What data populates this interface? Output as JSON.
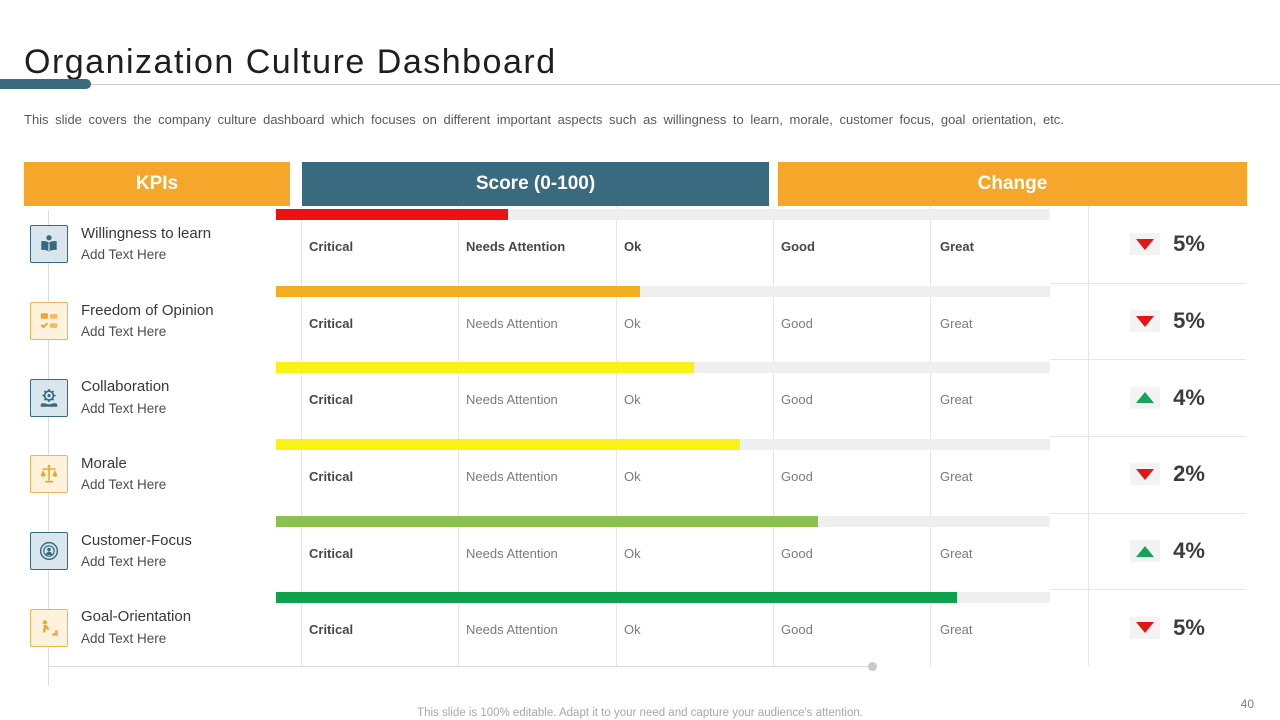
{
  "slide": {
    "title": "Organization Culture Dashboard",
    "subtitle": "This slide covers the company culture dashboard which focuses on different important aspects such as willingness to learn, morale, customer focus, goal orientation, etc.",
    "footer": "This slide is 100% editable. Adapt it to your need and capture your audience's attention.",
    "page_number": "40",
    "accent_color": "#3A6A80"
  },
  "table": {
    "headers": [
      {
        "label": "KPIs",
        "color": "#F6A72B"
      },
      {
        "label": "Score (0-100)",
        "color": "#3A6A80"
      },
      {
        "label": "Change",
        "color": "#F6A72B"
      }
    ],
    "scale_labels": [
      "Critical",
      "Needs Attention",
      "Ok",
      "Good",
      "Great"
    ],
    "change_colors": {
      "up": "#16A45A",
      "down": "#E11717"
    },
    "rows": [
      {
        "name": "Willingness to learn",
        "subtext": "Add Text Here",
        "icon": "reading-person-icon",
        "theme": "teal",
        "score": 30,
        "bar_color": "#ED1111",
        "change": {
          "direction": "down",
          "value": "5%"
        },
        "labels_bold": true
      },
      {
        "name": "Freedom of Opinion",
        "subtext": "Add Text Here",
        "icon": "opinion-checklist-icon",
        "theme": "orange",
        "score": 47,
        "bar_color": "#F2AE1E",
        "change": {
          "direction": "down",
          "value": "5%"
        },
        "labels_bold": false
      },
      {
        "name": "Collaboration",
        "subtext": "Add Text Here",
        "icon": "collaboration-gear-icon",
        "theme": "teal",
        "score": 54,
        "bar_color": "#F8F216",
        "change": {
          "direction": "up",
          "value": "4%"
        },
        "labels_bold": false
      },
      {
        "name": "Morale",
        "subtext": "Add Text Here",
        "icon": "morale-scales-icon",
        "theme": "orange",
        "score": 60,
        "bar_color": "#F8F216",
        "change": {
          "direction": "down",
          "value": "2%"
        },
        "labels_bold": false
      },
      {
        "name": "Customer-Focus",
        "subtext": "Add Text Here",
        "icon": "customer-focus-target-icon",
        "theme": "teal",
        "score": 70,
        "bar_color": "#8CC152",
        "change": {
          "direction": "up",
          "value": "4%"
        },
        "labels_bold": false
      },
      {
        "name": "Goal-Orientation",
        "subtext": "Add Text Here",
        "icon": "goal-stairs-icon",
        "theme": "orange",
        "score": 88,
        "bar_color": "#0EA24D",
        "change": {
          "direction": "down",
          "value": "5%"
        },
        "labels_bold": false
      }
    ]
  },
  "chart_data": {
    "type": "bar",
    "categories": [
      "Willingness to learn",
      "Freedom of Opinion",
      "Collaboration",
      "Morale",
      "Customer-Focus",
      "Goal-Orientation"
    ],
    "values": [
      30,
      47,
      54,
      60,
      70,
      88
    ],
    "series": [
      {
        "name": "Score (0-100)",
        "values": [
          30,
          47,
          54,
          60,
          70,
          88
        ]
      },
      {
        "name": "Change %",
        "values": [
          -5,
          -5,
          4,
          -2,
          4,
          -5
        ]
      }
    ],
    "title": "Organization Culture Dashboard",
    "xlabel": "KPIs",
    "ylabel": "Score (0-100)",
    "ylim": [
      0,
      100
    ]
  }
}
